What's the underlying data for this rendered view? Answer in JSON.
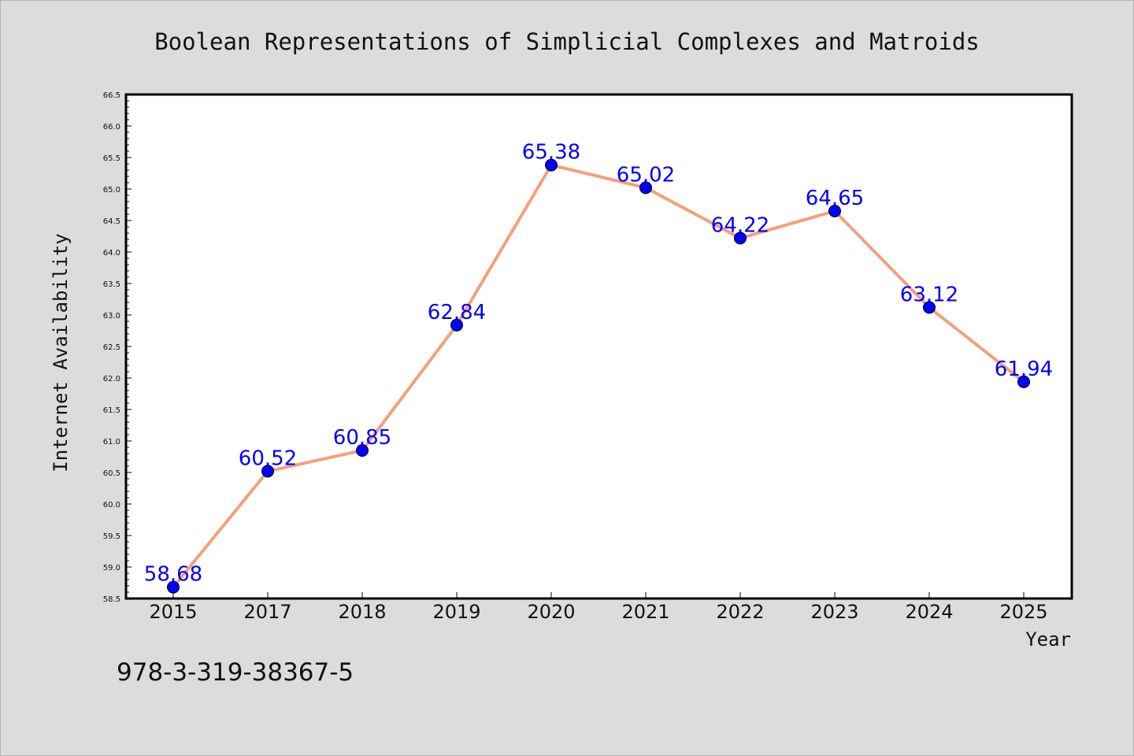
{
  "chart_data": {
    "type": "line",
    "title": "Boolean Representations of Simplicial Complexes and Matroids",
    "xlabel": "Year",
    "ylabel": "Internet Availability",
    "categories": [
      "2015",
      "2017",
      "2018",
      "2019",
      "2020",
      "2021",
      "2022",
      "2023",
      "2024",
      "2025"
    ],
    "series": [
      {
        "values": [
          58.68,
          60.52,
          60.85,
          62.84,
          65.38,
          65.02,
          64.22,
          64.65,
          63.12,
          61.94
        ],
        "data_labels": [
          "58.68",
          "60.52",
          "60.85",
          "62.84",
          "65.38",
          "65.02",
          "64.22",
          "64.65",
          "63.12",
          "61.94"
        ],
        "line_color": "#f4a07c",
        "marker_color": "#0000ff"
      }
    ],
    "ylim": [
      58.5,
      66.5
    ],
    "yticks": [
      "58.5",
      "59.0",
      "59.5",
      "60.0",
      "60.5",
      "61.0",
      "61.5",
      "62.0",
      "62.5",
      "63.0",
      "63.5",
      "64.0",
      "64.5",
      "65.0",
      "65.5",
      "66.0",
      "66.5"
    ],
    "grid": false,
    "legend": "none",
    "background_color": "#dcdcdc",
    "plot_background_color": "#ffffff",
    "label_color": "#0000ff"
  },
  "footer": {
    "text": "978-3-319-38367-5"
  }
}
